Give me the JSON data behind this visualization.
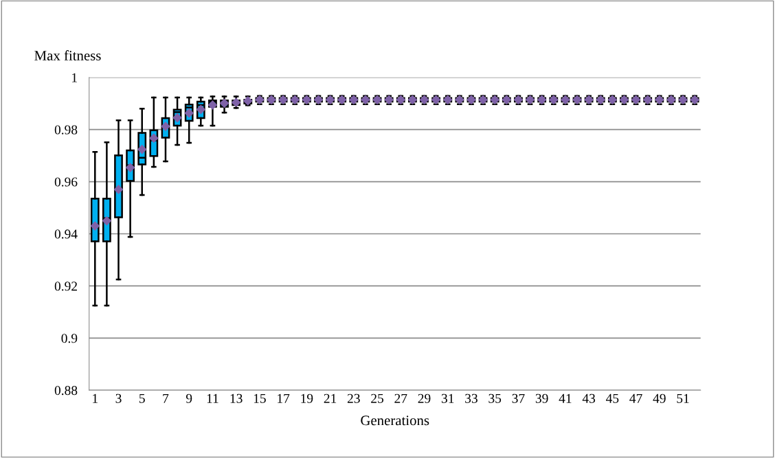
{
  "chart_data": {
    "type": "box",
    "xlabel": "Generations",
    "ylabel": "Max fitness",
    "categories": [
      "1",
      null,
      "3",
      null,
      "5",
      null,
      "7",
      null,
      "9",
      null,
      "11",
      null,
      "13",
      null,
      "15",
      null,
      "17",
      null,
      "19",
      null,
      "21",
      null,
      "23",
      null,
      "25",
      null,
      "27",
      null,
      "29",
      null,
      "31",
      null,
      "33",
      null,
      "35",
      null,
      "37",
      null,
      "39",
      null,
      "41",
      null,
      "43",
      null,
      "45",
      null,
      "47",
      null,
      "49",
      null,
      "51",
      null
    ],
    "color": "#00b0f0",
    "marker": "diamond",
    "ylim": [
      0.88,
      1
    ],
    "yticks": [
      0.88,
      0.9,
      0.92,
      0.94,
      0.96,
      0.98,
      1
    ],
    "grid": "y",
    "legend": false,
    "boxes": [
      {
        "low": 0.9125,
        "q1": 0.9371,
        "median": 0.943,
        "q3": 0.9535,
        "high": 0.9714,
        "mean": 0.943
      },
      {
        "low": 0.9125,
        "q1": 0.9371,
        "median": 0.946,
        "q3": 0.9535,
        "high": 0.9751,
        "mean": 0.945
      },
      {
        "low": 0.9225,
        "q1": 0.9463,
        "median": 0.9571,
        "q3": 0.9701,
        "high": 0.9835,
        "mean": 0.957
      },
      {
        "low": 0.9388,
        "q1": 0.9603,
        "median": 0.9663,
        "q3": 0.972,
        "high": 0.9835,
        "mean": 0.9654
      },
      {
        "low": 0.9549,
        "q1": 0.9666,
        "median": 0.9692,
        "q3": 0.9787,
        "high": 0.988,
        "mean": 0.9724
      },
      {
        "low": 0.9657,
        "q1": 0.9698,
        "median": 0.9758,
        "q3": 0.9797,
        "high": 0.9923,
        "mean": 0.9767
      },
      {
        "low": 0.9678,
        "q1": 0.9769,
        "median": 0.9812,
        "q3": 0.9844,
        "high": 0.9923,
        "mean": 0.9812
      },
      {
        "low": 0.9741,
        "q1": 0.9815,
        "median": 0.9867,
        "q3": 0.9876,
        "high": 0.9923,
        "mean": 0.9845
      },
      {
        "low": 0.9749,
        "q1": 0.9833,
        "median": 0.9885,
        "q3": 0.9896,
        "high": 0.9923,
        "mean": 0.9863
      },
      {
        "low": 0.9815,
        "q1": 0.9844,
        "median": 0.9894,
        "q3": 0.9907,
        "high": 0.9923,
        "mean": 0.9877
      },
      {
        "low": 0.9815,
        "q1": 0.9887,
        "median": 0.9907,
        "q3": 0.9912,
        "high": 0.9927,
        "mean": 0.9894
      },
      {
        "low": 0.9865,
        "q1": 0.9887,
        "median": 0.9901,
        "q3": 0.9912,
        "high": 0.9927,
        "mean": 0.9901
      },
      {
        "low": 0.9883,
        "q1": 0.9894,
        "median": 0.9904,
        "q3": 0.9912,
        "high": 0.9927,
        "mean": 0.9904
      },
      {
        "low": 0.9893,
        "q1": 0.99,
        "median": 0.991,
        "q3": 0.9914,
        "high": 0.9927,
        "mean": 0.991
      },
      {
        "low": 0.9897,
        "q1": 0.9907,
        "median": 0.9914,
        "q3": 0.9921,
        "high": 0.9929,
        "mean": 0.9914
      },
      {
        "low": 0.9897,
        "q1": 0.9907,
        "median": 0.9914,
        "q3": 0.9921,
        "high": 0.9929,
        "mean": 0.9914
      },
      {
        "low": 0.9897,
        "q1": 0.9907,
        "median": 0.9914,
        "q3": 0.9921,
        "high": 0.9929,
        "mean": 0.9914
      },
      {
        "low": 0.9897,
        "q1": 0.9907,
        "median": 0.9914,
        "q3": 0.9921,
        "high": 0.9929,
        "mean": 0.9914
      },
      {
        "low": 0.9897,
        "q1": 0.9907,
        "median": 0.9914,
        "q3": 0.9921,
        "high": 0.9929,
        "mean": 0.9914
      },
      {
        "low": 0.9897,
        "q1": 0.9907,
        "median": 0.9914,
        "q3": 0.9921,
        "high": 0.9929,
        "mean": 0.9914
      },
      {
        "low": 0.9897,
        "q1": 0.9907,
        "median": 0.9914,
        "q3": 0.9921,
        "high": 0.9929,
        "mean": 0.9914
      },
      {
        "low": 0.9897,
        "q1": 0.9907,
        "median": 0.9914,
        "q3": 0.9921,
        "high": 0.9929,
        "mean": 0.9914
      },
      {
        "low": 0.9897,
        "q1": 0.9907,
        "median": 0.9914,
        "q3": 0.9921,
        "high": 0.9929,
        "mean": 0.9914
      },
      {
        "low": 0.9897,
        "q1": 0.9907,
        "median": 0.9914,
        "q3": 0.9921,
        "high": 0.9929,
        "mean": 0.9914
      },
      {
        "low": 0.9897,
        "q1": 0.9907,
        "median": 0.9914,
        "q3": 0.9921,
        "high": 0.9929,
        "mean": 0.9914
      },
      {
        "low": 0.9897,
        "q1": 0.9907,
        "median": 0.9914,
        "q3": 0.9921,
        "high": 0.9929,
        "mean": 0.9914
      },
      {
        "low": 0.9897,
        "q1": 0.9907,
        "median": 0.9914,
        "q3": 0.9921,
        "high": 0.9929,
        "mean": 0.9914
      },
      {
        "low": 0.9897,
        "q1": 0.9907,
        "median": 0.9914,
        "q3": 0.9921,
        "high": 0.9929,
        "mean": 0.9914
      },
      {
        "low": 0.9897,
        "q1": 0.9907,
        "median": 0.9914,
        "q3": 0.9921,
        "high": 0.9929,
        "mean": 0.9914
      },
      {
        "low": 0.9897,
        "q1": 0.9907,
        "median": 0.9914,
        "q3": 0.9921,
        "high": 0.9929,
        "mean": 0.9914
      },
      {
        "low": 0.9897,
        "q1": 0.9907,
        "median": 0.9914,
        "q3": 0.9921,
        "high": 0.9929,
        "mean": 0.9914
      },
      {
        "low": 0.9897,
        "q1": 0.9907,
        "median": 0.9914,
        "q3": 0.9921,
        "high": 0.9929,
        "mean": 0.9914
      },
      {
        "low": 0.9897,
        "q1": 0.9907,
        "median": 0.9914,
        "q3": 0.9921,
        "high": 0.9929,
        "mean": 0.9914
      },
      {
        "low": 0.9897,
        "q1": 0.9907,
        "median": 0.9914,
        "q3": 0.9921,
        "high": 0.9929,
        "mean": 0.9914
      },
      {
        "low": 0.9897,
        "q1": 0.9907,
        "median": 0.9914,
        "q3": 0.9921,
        "high": 0.9929,
        "mean": 0.9914
      },
      {
        "low": 0.9897,
        "q1": 0.9907,
        "median": 0.9914,
        "q3": 0.9921,
        "high": 0.9929,
        "mean": 0.9914
      },
      {
        "low": 0.9897,
        "q1": 0.9907,
        "median": 0.9914,
        "q3": 0.9921,
        "high": 0.9929,
        "mean": 0.9914
      },
      {
        "low": 0.9897,
        "q1": 0.9907,
        "median": 0.9914,
        "q3": 0.9921,
        "high": 0.9929,
        "mean": 0.9914
      },
      {
        "low": 0.9897,
        "q1": 0.9907,
        "median": 0.9914,
        "q3": 0.9921,
        "high": 0.9929,
        "mean": 0.9914
      },
      {
        "low": 0.9897,
        "q1": 0.9907,
        "median": 0.9914,
        "q3": 0.9921,
        "high": 0.9929,
        "mean": 0.9914
      },
      {
        "low": 0.9897,
        "q1": 0.9907,
        "median": 0.9914,
        "q3": 0.9921,
        "high": 0.9929,
        "mean": 0.9914
      },
      {
        "low": 0.9897,
        "q1": 0.9907,
        "median": 0.9914,
        "q3": 0.9921,
        "high": 0.9929,
        "mean": 0.9914
      },
      {
        "low": 0.9897,
        "q1": 0.9907,
        "median": 0.9914,
        "q3": 0.9921,
        "high": 0.9929,
        "mean": 0.9914
      },
      {
        "low": 0.9897,
        "q1": 0.9907,
        "median": 0.9914,
        "q3": 0.9921,
        "high": 0.9929,
        "mean": 0.9914
      },
      {
        "low": 0.9897,
        "q1": 0.9907,
        "median": 0.9914,
        "q3": 0.9921,
        "high": 0.9929,
        "mean": 0.9914
      },
      {
        "low": 0.9897,
        "q1": 0.9907,
        "median": 0.9914,
        "q3": 0.9921,
        "high": 0.9929,
        "mean": 0.9914
      },
      {
        "low": 0.9897,
        "q1": 0.9907,
        "median": 0.9914,
        "q3": 0.9921,
        "high": 0.9929,
        "mean": 0.9914
      },
      {
        "low": 0.9897,
        "q1": 0.9907,
        "median": 0.9914,
        "q3": 0.9921,
        "high": 0.9929,
        "mean": 0.9914
      },
      {
        "low": 0.9897,
        "q1": 0.9907,
        "median": 0.9914,
        "q3": 0.9921,
        "high": 0.9929,
        "mean": 0.9914
      },
      {
        "low": 0.9897,
        "q1": 0.9907,
        "median": 0.9914,
        "q3": 0.9921,
        "high": 0.9929,
        "mean": 0.9914
      },
      {
        "low": 0.9897,
        "q1": 0.9907,
        "median": 0.9914,
        "q3": 0.9921,
        "high": 0.9929,
        "mean": 0.9914
      },
      {
        "low": 0.9897,
        "q1": 0.9907,
        "median": 0.9914,
        "q3": 0.9921,
        "high": 0.9929,
        "mean": 0.9914
      }
    ]
  }
}
